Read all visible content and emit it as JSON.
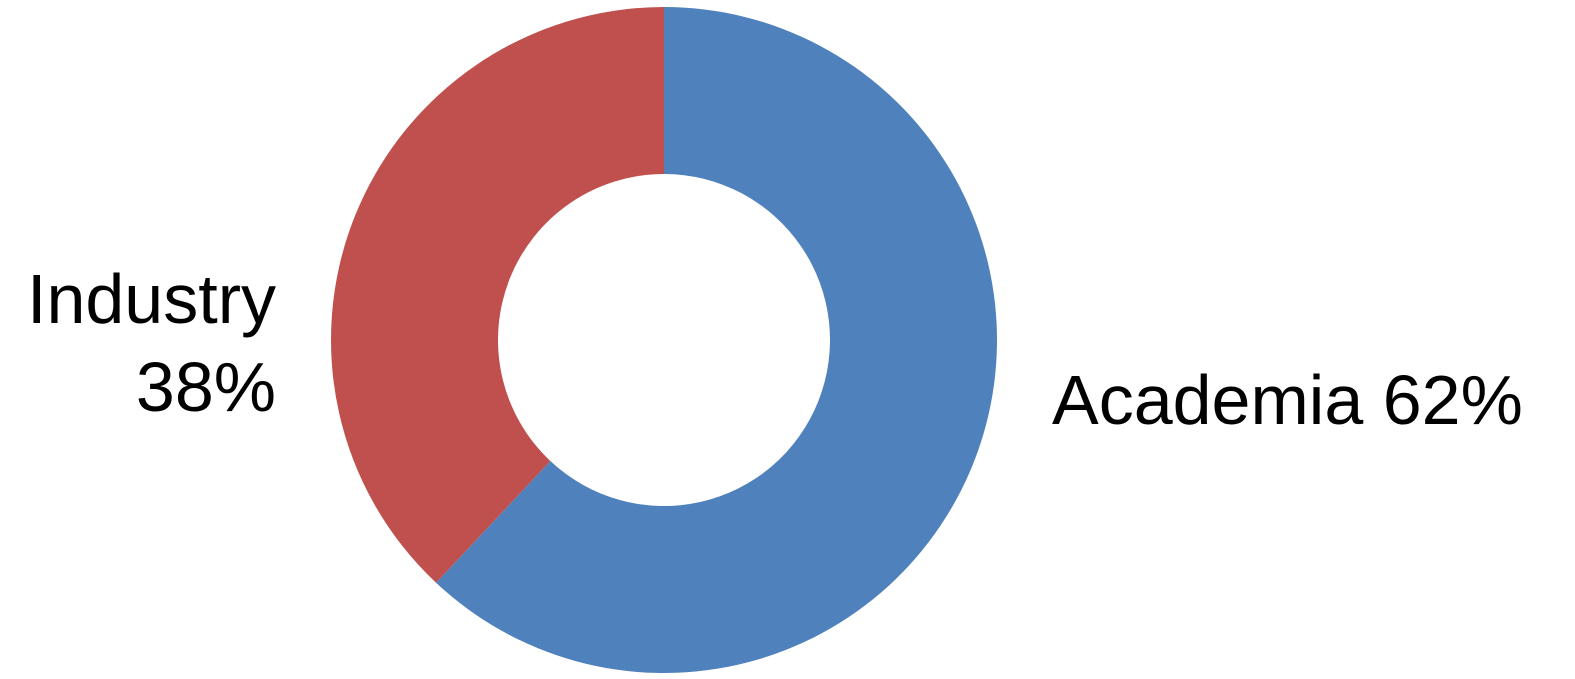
{
  "chart_data": {
    "type": "pie",
    "style": "donut",
    "title": "",
    "slices": [
      {
        "name": "Academia",
        "label": "Academia 62%",
        "value": 62,
        "color": "#4F81BD"
      },
      {
        "name": "Industry",
        "label_lines": [
          "Industry",
          "38%"
        ],
        "value": 38,
        "color": "#C0504D"
      }
    ],
    "legend": "none"
  }
}
